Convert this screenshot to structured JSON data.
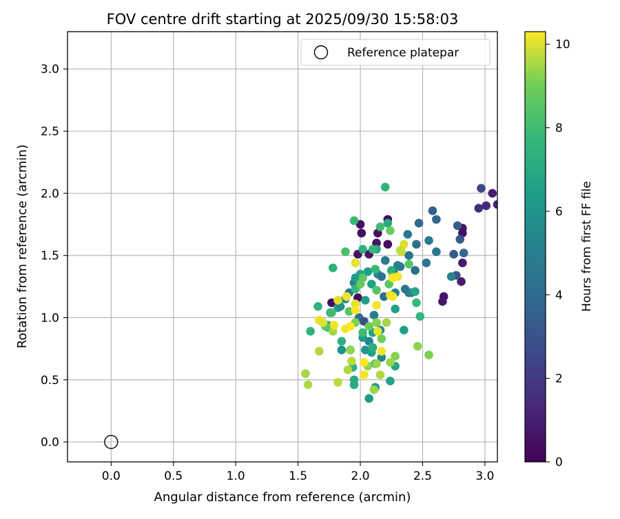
{
  "chart_data": {
    "type": "scatter",
    "title": "FOV centre drift starting at 2025/09/30 15:58:03",
    "xlabel": "Angular distance from reference (arcmin)",
    "ylabel": "Rotation from reference (arcmin)",
    "xlim": [
      -0.35,
      3.1
    ],
    "ylim": [
      -0.16,
      3.3
    ],
    "xticks": [
      0.0,
      0.5,
      1.0,
      1.5,
      2.0,
      2.5,
      3.0
    ],
    "xtick_labels": [
      "0.0",
      "0.5",
      "1.0",
      "1.5",
      "2.0",
      "2.5",
      "3.0"
    ],
    "yticks": [
      0.0,
      0.5,
      1.0,
      1.5,
      2.0,
      2.5,
      3.0
    ],
    "ytick_labels": [
      "0.0",
      "0.5",
      "1.0",
      "1.5",
      "2.0",
      "2.5",
      "3.0"
    ],
    "grid": true,
    "legend": {
      "position": "top-right",
      "entries": [
        "Reference platepar"
      ]
    },
    "reference_point": {
      "x": 0.0,
      "y": 0.0,
      "label": "Reference platepar"
    },
    "colorbar": {
      "label": "Hours from first FF file",
      "range": [
        0,
        10.3
      ],
      "ticks": [
        0,
        2,
        4,
        6,
        8,
        10
      ],
      "tick_labels": [
        "0",
        "2",
        "4",
        "6",
        "8",
        "10"
      ],
      "colormap": "viridis"
    },
    "points": [
      {
        "x": 2.22,
        "y": 1.79,
        "c": 0.3
      },
      {
        "x": 2.0,
        "y": 1.75,
        "c": 0.5
      },
      {
        "x": 2.14,
        "y": 1.68,
        "c": 0.5
      },
      {
        "x": 2.01,
        "y": 1.68,
        "c": 0.4
      },
      {
        "x": 2.13,
        "y": 1.6,
        "c": 0.6
      },
      {
        "x": 2.22,
        "y": 1.59,
        "c": 0.4
      },
      {
        "x": 1.98,
        "y": 1.51,
        "c": 0.5
      },
      {
        "x": 2.07,
        "y": 1.51,
        "c": 0.6
      },
      {
        "x": 1.98,
        "y": 1.16,
        "c": 0.3
      },
      {
        "x": 1.77,
        "y": 1.12,
        "c": 0.4
      },
      {
        "x": 2.67,
        "y": 1.17,
        "c": 0.6
      },
      {
        "x": 2.66,
        "y": 1.13,
        "c": 0.7
      },
      {
        "x": 2.82,
        "y": 1.72,
        "c": 0.6
      },
      {
        "x": 2.82,
        "y": 1.44,
        "c": 0.8
      },
      {
        "x": 2.81,
        "y": 1.29,
        "c": 1.0
      },
      {
        "x": 2.82,
        "y": 1.68,
        "c": 0.5
      },
      {
        "x": 3.06,
        "y": 2.0,
        "c": 0.9
      },
      {
        "x": 3.1,
        "y": 1.91,
        "c": 1.1
      },
      {
        "x": 3.01,
        "y": 1.9,
        "c": 1.3
      },
      {
        "x": 2.95,
        "y": 1.88,
        "c": 1.5
      },
      {
        "x": 2.97,
        "y": 2.04,
        "c": 2.5
      },
      {
        "x": 2.58,
        "y": 1.86,
        "c": 3.6
      },
      {
        "x": 2.61,
        "y": 1.79,
        "c": 3.8
      },
      {
        "x": 2.47,
        "y": 1.76,
        "c": 3.9
      },
      {
        "x": 2.78,
        "y": 1.74,
        "c": 3.4
      },
      {
        "x": 2.8,
        "y": 1.63,
        "c": 3.3
      },
      {
        "x": 2.83,
        "y": 1.52,
        "c": 3.9
      },
      {
        "x": 2.75,
        "y": 1.51,
        "c": 3.3
      },
      {
        "x": 2.77,
        "y": 1.34,
        "c": 3.0
      },
      {
        "x": 2.73,
        "y": 1.33,
        "c": 5.2
      },
      {
        "x": 2.61,
        "y": 1.53,
        "c": 4.6
      },
      {
        "x": 2.55,
        "y": 1.62,
        "c": 4.8
      },
      {
        "x": 2.53,
        "y": 1.44,
        "c": 4.6
      },
      {
        "x": 2.45,
        "y": 1.59,
        "c": 4.2
      },
      {
        "x": 2.39,
        "y": 1.5,
        "c": 4.4
      },
      {
        "x": 2.38,
        "y": 1.67,
        "c": 4.6
      },
      {
        "x": 2.32,
        "y": 1.41,
        "c": 4.5
      },
      {
        "x": 2.3,
        "y": 1.42,
        "c": 5.2
      },
      {
        "x": 2.27,
        "y": 1.36,
        "c": 4.8
      },
      {
        "x": 2.2,
        "y": 1.46,
        "c": 4.7
      },
      {
        "x": 2.44,
        "y": 1.38,
        "c": 4.1
      },
      {
        "x": 2.28,
        "y": 1.2,
        "c": 5.0
      },
      {
        "x": 2.36,
        "y": 1.23,
        "c": 4.5
      },
      {
        "x": 2.39,
        "y": 1.2,
        "c": 4.3
      },
      {
        "x": 2.41,
        "y": 1.2,
        "c": 5.4
      },
      {
        "x": 2.19,
        "y": 1.17,
        "c": 4.3
      },
      {
        "x": 2.14,
        "y": 1.35,
        "c": 5.6
      },
      {
        "x": 2.17,
        "y": 1.33,
        "c": 4.4
      },
      {
        "x": 1.91,
        "y": 1.2,
        "c": 4.8
      },
      {
        "x": 1.88,
        "y": 1.15,
        "c": 5.8
      },
      {
        "x": 1.95,
        "y": 1.28,
        "c": 5.0
      },
      {
        "x": 1.99,
        "y": 1.0,
        "c": 4.2
      },
      {
        "x": 2.03,
        "y": 0.97,
        "c": 2.6
      },
      {
        "x": 2.11,
        "y": 1.02,
        "c": 5.0
      },
      {
        "x": 2.16,
        "y": 0.9,
        "c": 5.5
      },
      {
        "x": 2.07,
        "y": 0.81,
        "c": 5.3
      },
      {
        "x": 2.17,
        "y": 0.68,
        "c": 5.4
      },
      {
        "x": 1.92,
        "y": 0.74,
        "c": 6.2
      },
      {
        "x": 1.85,
        "y": 0.74,
        "c": 5.9
      },
      {
        "x": 2.04,
        "y": 0.74,
        "c": 6.0
      },
      {
        "x": 2.09,
        "y": 0.72,
        "c": 6.6
      },
      {
        "x": 2.12,
        "y": 0.63,
        "c": 6.5
      },
      {
        "x": 2.28,
        "y": 0.61,
        "c": 6.9
      },
      {
        "x": 2.24,
        "y": 0.49,
        "c": 6.7
      },
      {
        "x": 2.12,
        "y": 0.44,
        "c": 6.3
      },
      {
        "x": 2.07,
        "y": 0.35,
        "c": 6.4
      },
      {
        "x": 2.35,
        "y": 0.9,
        "c": 6.5
      },
      {
        "x": 2.28,
        "y": 1.07,
        "c": 6.6
      },
      {
        "x": 2.04,
        "y": 1.14,
        "c": 6.5
      },
      {
        "x": 2.0,
        "y": 1.35,
        "c": 6.8
      },
      {
        "x": 2.06,
        "y": 1.37,
        "c": 6.5
      },
      {
        "x": 1.96,
        "y": 1.32,
        "c": 6.4
      },
      {
        "x": 2.09,
        "y": 1.27,
        "c": 6.7
      },
      {
        "x": 1.82,
        "y": 1.08,
        "c": 6.6
      },
      {
        "x": 1.84,
        "y": 1.09,
        "c": 5.7
      },
      {
        "x": 1.76,
        "y": 1.04,
        "c": 6.9
      },
      {
        "x": 2.44,
        "y": 1.21,
        "c": 6.8
      },
      {
        "x": 2.1,
        "y": 0.88,
        "c": 6.5
      },
      {
        "x": 2.02,
        "y": 0.84,
        "c": 6.2
      },
      {
        "x": 2.1,
        "y": 0.76,
        "c": 7.3
      },
      {
        "x": 2.22,
        "y": 1.76,
        "c": 7.0
      },
      {
        "x": 2.13,
        "y": 1.55,
        "c": 6.9
      },
      {
        "x": 2.02,
        "y": 1.55,
        "c": 7.4
      },
      {
        "x": 2.2,
        "y": 2.05,
        "c": 7.5
      },
      {
        "x": 1.95,
        "y": 1.78,
        "c": 7.8
      },
      {
        "x": 2.16,
        "y": 1.73,
        "c": 8.0
      },
      {
        "x": 1.88,
        "y": 1.53,
        "c": 8.2
      },
      {
        "x": 2.1,
        "y": 1.55,
        "c": 7.6
      },
      {
        "x": 1.78,
        "y": 1.4,
        "c": 7.4
      },
      {
        "x": 2.12,
        "y": 1.39,
        "c": 7.8
      },
      {
        "x": 2.25,
        "y": 1.38,
        "c": 7.2
      },
      {
        "x": 1.96,
        "y": 1.23,
        "c": 7.6
      },
      {
        "x": 1.77,
        "y": 1.04,
        "c": 8.0
      },
      {
        "x": 1.66,
        "y": 1.09,
        "c": 7.4
      },
      {
        "x": 1.74,
        "y": 0.94,
        "c": 7.6
      },
      {
        "x": 1.6,
        "y": 0.89,
        "c": 7.4
      },
      {
        "x": 1.74,
        "y": 0.92,
        "c": 7.8
      },
      {
        "x": 1.85,
        "y": 0.81,
        "c": 7.4
      },
      {
        "x": 1.94,
        "y": 0.6,
        "c": 7.4
      },
      {
        "x": 1.95,
        "y": 0.5,
        "c": 7.0
      },
      {
        "x": 1.95,
        "y": 0.46,
        "c": 7.2
      },
      {
        "x": 2.02,
        "y": 0.88,
        "c": 7.9
      },
      {
        "x": 2.48,
        "y": 1.01,
        "c": 7.6
      },
      {
        "x": 2.45,
        "y": 1.12,
        "c": 7.8
      },
      {
        "x": 2.39,
        "y": 1.43,
        "c": 8.5
      },
      {
        "x": 2.24,
        "y": 1.7,
        "c": 8.9
      },
      {
        "x": 2.26,
        "y": 1.33,
        "c": 8.4
      },
      {
        "x": 2.23,
        "y": 1.27,
        "c": 8.5
      },
      {
        "x": 2.13,
        "y": 1.22,
        "c": 8.4
      },
      {
        "x": 2.02,
        "y": 1.32,
        "c": 8.6
      },
      {
        "x": 2.0,
        "y": 1.27,
        "c": 8.8
      },
      {
        "x": 1.91,
        "y": 1.05,
        "c": 8.5
      },
      {
        "x": 1.96,
        "y": 0.96,
        "c": 9.1
      },
      {
        "x": 2.07,
        "y": 0.93,
        "c": 8.8
      },
      {
        "x": 2.13,
        "y": 0.96,
        "c": 9.2
      },
      {
        "x": 2.21,
        "y": 0.96,
        "c": 9.5
      },
      {
        "x": 2.17,
        "y": 0.83,
        "c": 9.0
      },
      {
        "x": 2.28,
        "y": 0.69,
        "c": 9.2
      },
      {
        "x": 2.24,
        "y": 0.64,
        "c": 9.4
      },
      {
        "x": 2.13,
        "y": 0.63,
        "c": 9.4
      },
      {
        "x": 2.06,
        "y": 0.61,
        "c": 9.3
      },
      {
        "x": 2.16,
        "y": 0.54,
        "c": 9.6
      },
      {
        "x": 2.11,
        "y": 0.42,
        "c": 9.4
      },
      {
        "x": 1.93,
        "y": 0.65,
        "c": 9.7
      },
      {
        "x": 1.9,
        "y": 0.58,
        "c": 9.6
      },
      {
        "x": 1.82,
        "y": 0.48,
        "c": 9.7
      },
      {
        "x": 1.92,
        "y": 0.74,
        "c": 9.3
      },
      {
        "x": 1.78,
        "y": 0.89,
        "c": 9.5
      },
      {
        "x": 1.72,
        "y": 0.93,
        "c": 8.6
      },
      {
        "x": 1.67,
        "y": 0.73,
        "c": 9.6
      },
      {
        "x": 1.56,
        "y": 0.55,
        "c": 9.5
      },
      {
        "x": 1.58,
        "y": 0.46,
        "c": 9.6
      },
      {
        "x": 2.46,
        "y": 0.77,
        "c": 9.3
      },
      {
        "x": 2.55,
        "y": 0.7,
        "c": 9.1
      },
      {
        "x": 2.33,
        "y": 1.53,
        "c": 9.9
      },
      {
        "x": 2.35,
        "y": 1.59,
        "c": 10.0
      },
      {
        "x": 2.32,
        "y": 1.54,
        "c": 9.8
      },
      {
        "x": 1.96,
        "y": 1.44,
        "c": 10.1
      },
      {
        "x": 2.3,
        "y": 1.33,
        "c": 10.2
      },
      {
        "x": 2.26,
        "y": 1.32,
        "c": 10.3
      },
      {
        "x": 1.82,
        "y": 1.14,
        "c": 10.0
      },
      {
        "x": 1.89,
        "y": 1.17,
        "c": 10.2
      },
      {
        "x": 1.96,
        "y": 1.11,
        "c": 10.1
      },
      {
        "x": 1.96,
        "y": 1.06,
        "c": 10.3
      },
      {
        "x": 2.13,
        "y": 1.1,
        "c": 10.2
      },
      {
        "x": 2.24,
        "y": 1.18,
        "c": 10.1
      },
      {
        "x": 2.26,
        "y": 1.17,
        "c": 10.3
      },
      {
        "x": 1.67,
        "y": 0.98,
        "c": 10.1
      },
      {
        "x": 1.7,
        "y": 0.96,
        "c": 10.0
      },
      {
        "x": 1.88,
        "y": 0.91,
        "c": 10.2
      },
      {
        "x": 1.92,
        "y": 0.93,
        "c": 10.3
      },
      {
        "x": 1.79,
        "y": 0.94,
        "c": 10.2
      },
      {
        "x": 2.14,
        "y": 0.89,
        "c": 10.1
      },
      {
        "x": 2.17,
        "y": 0.73,
        "c": 10.2
      },
      {
        "x": 2.03,
        "y": 0.64,
        "c": 10.3
      },
      {
        "x": 2.03,
        "y": 0.54,
        "c": 10.2
      }
    ]
  }
}
